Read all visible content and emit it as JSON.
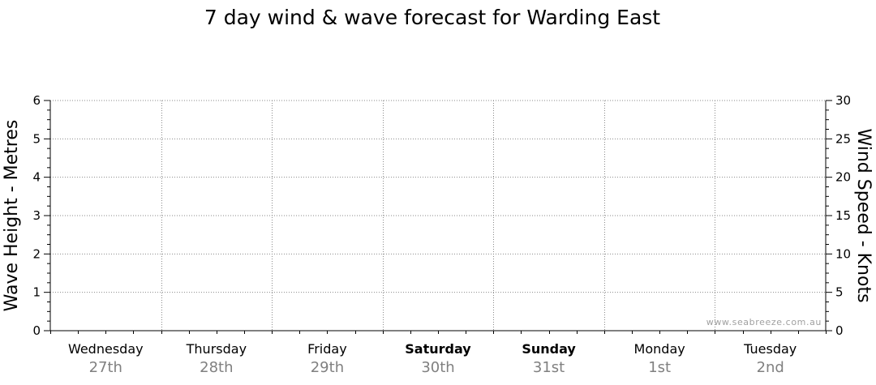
{
  "chart_data": {
    "type": "line",
    "title": "7 day wind & wave forecast for Warding East",
    "ylabel_left": "Wave Height - Metres",
    "ylabel_right": "Wind Speed - Knots",
    "ylim_left": [
      0,
      6
    ],
    "ylim_right": [
      0,
      30
    ],
    "yticks_left": [
      "0",
      "1",
      "2",
      "3",
      "4",
      "5",
      "6"
    ],
    "yticks_right": [
      "0",
      "5",
      "10",
      "15",
      "20",
      "25",
      "30"
    ],
    "days": [
      {
        "day": "Wednesday",
        "date": "27th",
        "bold": false
      },
      {
        "day": "Thursday",
        "date": "28th",
        "bold": false
      },
      {
        "day": "Friday",
        "date": "29th",
        "bold": false
      },
      {
        "day": "Saturday",
        "date": "30th",
        "bold": true
      },
      {
        "day": "Sunday",
        "date": "31st",
        "bold": true
      },
      {
        "day": "Monday",
        "date": "1st",
        "bold": false
      },
      {
        "day": "Tuesday",
        "date": "2nd",
        "bold": false
      }
    ],
    "grid": true,
    "series": [],
    "watermark": "www.seabreeze.com.au"
  }
}
